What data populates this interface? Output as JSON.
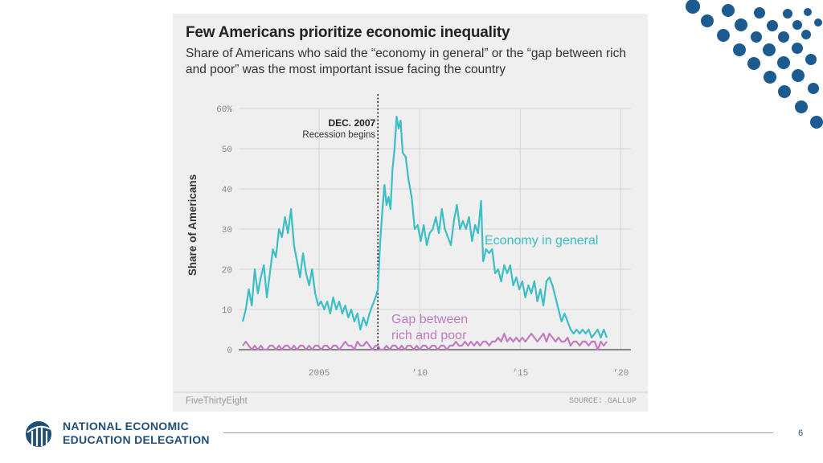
{
  "slide": {
    "page_number": "6",
    "logo_line1": "NATIONAL ECONOMIC",
    "logo_line2": "EDUCATION DELEGATION",
    "colors": {
      "brand_navy": "#1f4e79",
      "dot_blue": "#1c5a8f"
    }
  },
  "chart_data": {
    "type": "line",
    "title": "Few Americans prioritize economic inequality",
    "subtitle": "Share of Americans who said the “economy in general” or the “gap between rich and poor” was the most important issue facing the country",
    "ylabel": "Share of Americans",
    "xlabel": "",
    "ylim": [
      0,
      60
    ],
    "xlim": [
      2001.0,
      2020.5
    ],
    "yticks": [
      {
        "value": 0,
        "label": "0"
      },
      {
        "value": 10,
        "label": "10"
      },
      {
        "value": 20,
        "label": "20"
      },
      {
        "value": 30,
        "label": "30"
      },
      {
        "value": 40,
        "label": "40"
      },
      {
        "value": 50,
        "label": "50"
      },
      {
        "value": 60,
        "label": "60%"
      }
    ],
    "xticks": [
      {
        "value": 2005,
        "label": "2005"
      },
      {
        "value": 2010,
        "label": "’10"
      },
      {
        "value": 2015,
        "label": "’15"
      },
      {
        "value": 2020,
        "label": "’20"
      }
    ],
    "annotation": {
      "x": 2007.92,
      "title": "DEC. 2007",
      "text": "Recession begins"
    },
    "series": [
      {
        "name": "Economy in general",
        "color": "#3bbfc4",
        "points": [
          [
            2001.2,
            7
          ],
          [
            2001.35,
            10
          ],
          [
            2001.5,
            15
          ],
          [
            2001.65,
            11
          ],
          [
            2001.8,
            20
          ],
          [
            2001.95,
            14
          ],
          [
            2002.1,
            18
          ],
          [
            2002.25,
            21
          ],
          [
            2002.4,
            13
          ],
          [
            2002.55,
            19
          ],
          [
            2002.7,
            25
          ],
          [
            2002.85,
            23
          ],
          [
            2003.0,
            30
          ],
          [
            2003.15,
            28
          ],
          [
            2003.3,
            33
          ],
          [
            2003.45,
            29
          ],
          [
            2003.6,
            35
          ],
          [
            2003.75,
            26
          ],
          [
            2003.9,
            22
          ],
          [
            2004.05,
            18
          ],
          [
            2004.2,
            24
          ],
          [
            2004.35,
            19
          ],
          [
            2004.5,
            16
          ],
          [
            2004.65,
            20
          ],
          [
            2004.8,
            14
          ],
          [
            2004.95,
            11
          ],
          [
            2005.1,
            12
          ],
          [
            2005.25,
            10
          ],
          [
            2005.4,
            12
          ],
          [
            2005.55,
            9
          ],
          [
            2005.7,
            13
          ],
          [
            2005.85,
            10
          ],
          [
            2006.0,
            12
          ],
          [
            2006.15,
            9
          ],
          [
            2006.3,
            11
          ],
          [
            2006.45,
            8
          ],
          [
            2006.6,
            10
          ],
          [
            2006.75,
            7
          ],
          [
            2006.9,
            9
          ],
          [
            2007.05,
            5
          ],
          [
            2007.2,
            8
          ],
          [
            2007.35,
            6
          ],
          [
            2007.5,
            9
          ],
          [
            2007.65,
            11
          ],
          [
            2007.8,
            13
          ],
          [
            2007.92,
            15
          ],
          [
            2008.05,
            28
          ],
          [
            2008.15,
            35
          ],
          [
            2008.25,
            41
          ],
          [
            2008.35,
            36
          ],
          [
            2008.45,
            38
          ],
          [
            2008.55,
            35
          ],
          [
            2008.65,
            45
          ],
          [
            2008.75,
            50
          ],
          [
            2008.85,
            58
          ],
          [
            2008.95,
            55
          ],
          [
            2009.05,
            57
          ],
          [
            2009.15,
            49
          ],
          [
            2009.3,
            48
          ],
          [
            2009.45,
            42
          ],
          [
            2009.6,
            38
          ],
          [
            2009.75,
            30
          ],
          [
            2009.9,
            31
          ],
          [
            2010.05,
            27
          ],
          [
            2010.2,
            31
          ],
          [
            2010.35,
            26
          ],
          [
            2010.5,
            29
          ],
          [
            2010.65,
            30
          ],
          [
            2010.8,
            33
          ],
          [
            2010.95,
            29
          ],
          [
            2011.1,
            35
          ],
          [
            2011.25,
            30
          ],
          [
            2011.4,
            28
          ],
          [
            2011.55,
            26
          ],
          [
            2011.7,
            32
          ],
          [
            2011.85,
            36
          ],
          [
            2012.0,
            30
          ],
          [
            2012.15,
            32
          ],
          [
            2012.3,
            30
          ],
          [
            2012.45,
            33
          ],
          [
            2012.6,
            27
          ],
          [
            2012.75,
            31
          ],
          [
            2012.9,
            29
          ],
          [
            2013.05,
            37
          ],
          [
            2013.15,
            22
          ],
          [
            2013.3,
            25
          ],
          [
            2013.45,
            24
          ],
          [
            2013.6,
            25
          ],
          [
            2013.75,
            19
          ],
          [
            2013.9,
            20
          ],
          [
            2014.05,
            17
          ],
          [
            2014.2,
            21
          ],
          [
            2014.35,
            19
          ],
          [
            2014.5,
            21
          ],
          [
            2014.65,
            16
          ],
          [
            2014.8,
            18
          ],
          [
            2014.95,
            15
          ],
          [
            2015.1,
            17
          ],
          [
            2015.25,
            13
          ],
          [
            2015.4,
            16
          ],
          [
            2015.55,
            14
          ],
          [
            2015.7,
            17
          ],
          [
            2015.85,
            12
          ],
          [
            2016.0,
            15
          ],
          [
            2016.15,
            11
          ],
          [
            2016.3,
            17
          ],
          [
            2016.45,
            18
          ],
          [
            2016.6,
            16
          ],
          [
            2016.75,
            13
          ],
          [
            2016.9,
            10
          ],
          [
            2017.05,
            7
          ],
          [
            2017.2,
            9
          ],
          [
            2017.35,
            7
          ],
          [
            2017.5,
            5
          ],
          [
            2017.65,
            4
          ],
          [
            2017.8,
            5
          ],
          [
            2017.95,
            4
          ],
          [
            2018.1,
            5
          ],
          [
            2018.25,
            4
          ],
          [
            2018.4,
            5
          ],
          [
            2018.55,
            3
          ],
          [
            2018.7,
            4
          ],
          [
            2018.85,
            5
          ],
          [
            2019.0,
            3
          ],
          [
            2019.15,
            5
          ],
          [
            2019.3,
            3
          ]
        ],
        "label": "Economy in general"
      },
      {
        "name": "Gap between rich and poor",
        "color": "#c47ac0",
        "points": [
          [
            2001.2,
            1
          ],
          [
            2001.35,
            2
          ],
          [
            2001.5,
            1
          ],
          [
            2001.65,
            0
          ],
          [
            2001.8,
            1
          ],
          [
            2001.95,
            0
          ],
          [
            2002.1,
            1
          ],
          [
            2002.25,
            0
          ],
          [
            2002.4,
            0
          ],
          [
            2002.55,
            1
          ],
          [
            2002.7,
            1
          ],
          [
            2002.85,
            0
          ],
          [
            2003.0,
            1
          ],
          [
            2003.15,
            0
          ],
          [
            2003.3,
            1
          ],
          [
            2003.45,
            1
          ],
          [
            2003.6,
            0
          ],
          [
            2003.75,
            1
          ],
          [
            2003.9,
            0
          ],
          [
            2004.05,
            1
          ],
          [
            2004.2,
            1
          ],
          [
            2004.35,
            0
          ],
          [
            2004.5,
            1
          ],
          [
            2004.65,
            0
          ],
          [
            2004.8,
            1
          ],
          [
            2004.95,
            1
          ],
          [
            2005.1,
            0
          ],
          [
            2005.25,
            1
          ],
          [
            2005.4,
            1
          ],
          [
            2005.55,
            0
          ],
          [
            2005.7,
            1
          ],
          [
            2005.85,
            1
          ],
          [
            2006.0,
            0
          ],
          [
            2006.15,
            1
          ],
          [
            2006.3,
            2
          ],
          [
            2006.45,
            1
          ],
          [
            2006.6,
            1
          ],
          [
            2006.75,
            0
          ],
          [
            2006.9,
            2
          ],
          [
            2007.05,
            1
          ],
          [
            2007.2,
            1
          ],
          [
            2007.35,
            2
          ],
          [
            2007.5,
            1
          ],
          [
            2007.65,
            0
          ],
          [
            2007.8,
            1
          ],
          [
            2007.92,
            1
          ],
          [
            2008.05,
            0
          ],
          [
            2008.2,
            0
          ],
          [
            2008.35,
            1
          ],
          [
            2008.5,
            0
          ],
          [
            2008.65,
            1
          ],
          [
            2008.8,
            1
          ],
          [
            2008.95,
            0
          ],
          [
            2009.1,
            1
          ],
          [
            2009.25,
            0
          ],
          [
            2009.4,
            1
          ],
          [
            2009.55,
            1
          ],
          [
            2009.7,
            0
          ],
          [
            2009.85,
            1
          ],
          [
            2010.0,
            0
          ],
          [
            2010.15,
            1
          ],
          [
            2010.3,
            1
          ],
          [
            2010.45,
            0
          ],
          [
            2010.6,
            1
          ],
          [
            2010.75,
            1
          ],
          [
            2010.9,
            0
          ],
          [
            2011.05,
            1
          ],
          [
            2011.2,
            1
          ],
          [
            2011.35,
            0
          ],
          [
            2011.5,
            1
          ],
          [
            2011.65,
            1
          ],
          [
            2011.8,
            2
          ],
          [
            2011.95,
            1
          ],
          [
            2012.1,
            1
          ],
          [
            2012.25,
            2
          ],
          [
            2012.4,
            1
          ],
          [
            2012.55,
            2
          ],
          [
            2012.7,
            1
          ],
          [
            2012.85,
            2
          ],
          [
            2013.0,
            1
          ],
          [
            2013.15,
            2
          ],
          [
            2013.3,
            2
          ],
          [
            2013.45,
            1
          ],
          [
            2013.6,
            2
          ],
          [
            2013.75,
            2
          ],
          [
            2013.9,
            3
          ],
          [
            2014.05,
            2
          ],
          [
            2014.2,
            4
          ],
          [
            2014.35,
            2
          ],
          [
            2014.5,
            3
          ],
          [
            2014.65,
            2
          ],
          [
            2014.8,
            3
          ],
          [
            2014.95,
            2
          ],
          [
            2015.1,
            3
          ],
          [
            2015.25,
            2
          ],
          [
            2015.4,
            3
          ],
          [
            2015.55,
            4
          ],
          [
            2015.7,
            3
          ],
          [
            2015.85,
            2
          ],
          [
            2016.0,
            3
          ],
          [
            2016.15,
            4
          ],
          [
            2016.3,
            2
          ],
          [
            2016.45,
            4
          ],
          [
            2016.6,
            3
          ],
          [
            2016.75,
            2
          ],
          [
            2016.9,
            3
          ],
          [
            2017.05,
            2
          ],
          [
            2017.2,
            2
          ],
          [
            2017.35,
            3
          ],
          [
            2017.5,
            1
          ],
          [
            2017.65,
            2
          ],
          [
            2017.8,
            2
          ],
          [
            2017.95,
            1
          ],
          [
            2018.1,
            2
          ],
          [
            2018.25,
            2
          ],
          [
            2018.4,
            1
          ],
          [
            2018.55,
            2
          ],
          [
            2018.7,
            2
          ],
          [
            2018.85,
            0
          ],
          [
            2019.0,
            2
          ],
          [
            2019.15,
            1
          ],
          [
            2019.3,
            2
          ]
        ],
        "label": "Gap between rich and poor"
      }
    ],
    "credit": "FiveThirtyEight",
    "source": "SOURCE: GALLUP"
  }
}
